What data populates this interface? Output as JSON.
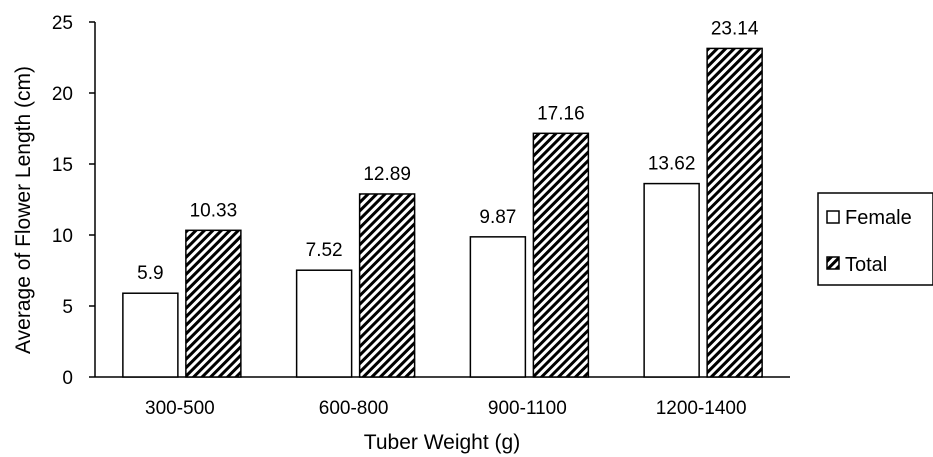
{
  "chart_data": {
    "type": "bar",
    "categories": [
      "300-500",
      "600-800",
      "900-1100",
      "1200-1400"
    ],
    "series": [
      {
        "name": "Female",
        "values": [
          5.9,
          7.52,
          9.87,
          13.62
        ],
        "fill": "#ffffff",
        "pattern": "none"
      },
      {
        "name": "Total",
        "values": [
          10.33,
          12.89,
          17.16,
          23.14
        ],
        "fill": "#000000",
        "pattern": "diagonal-stripes"
      }
    ],
    "data_labels": [
      [
        "5.9",
        "7.52",
        "9.87",
        "13.62"
      ],
      [
        "10.33",
        "12.89",
        "17.16",
        "23.14"
      ]
    ],
    "xlabel": "Tuber Weight (g)",
    "ylabel": "Average of Flower Length (cm)",
    "ylim": [
      0,
      25
    ],
    "yticks": [
      0,
      5,
      10,
      15,
      20,
      25
    ],
    "grid": false,
    "legend_position": "right",
    "colors": {
      "bar_stroke": "#000000",
      "axis": "#000000",
      "legend_border": "#000000",
      "background": "#ffffff"
    }
  }
}
